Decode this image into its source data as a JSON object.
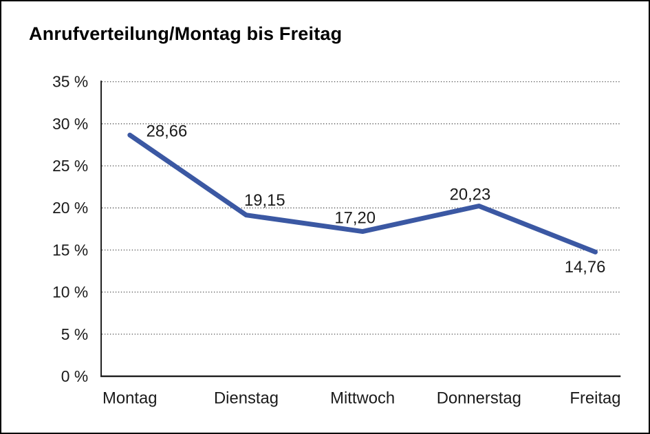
{
  "page": {
    "background_color": "#ffffff",
    "border_color": "#000000"
  },
  "chart_data": {
    "type": "line",
    "title": "Anrufverteilung/Montag bis Freitag",
    "categories": [
      "Montag",
      "Dienstag",
      "Mittwoch",
      "Donnerstag",
      "Freitag"
    ],
    "values": [
      28.66,
      19.15,
      17.2,
      20.23,
      14.76
    ],
    "data_labels": [
      "28,66",
      "19,15",
      "17,20",
      "20,23",
      "14,76"
    ],
    "xlabel": "",
    "ylabel": "",
    "ylim": [
      0,
      35
    ],
    "y_tick_step": 5,
    "y_tick_labels": [
      "0 %",
      "5 %",
      "10 %",
      "15 %",
      "20 %",
      "25 %",
      "30 %",
      "35 %"
    ],
    "grid": "horizontal-dotted",
    "legend": "none",
    "line_color": "#3b58a3",
    "axis_color": "#1a1a1a",
    "text_color": "#1a1a1a",
    "gridline_color": "#4d4d4d"
  }
}
